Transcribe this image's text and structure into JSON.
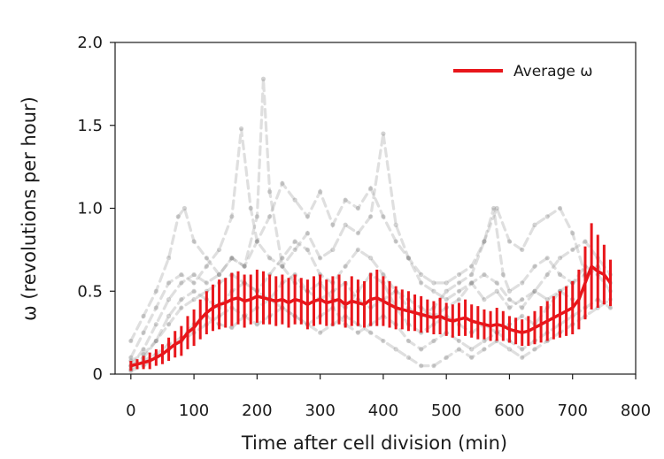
{
  "chart_data": {
    "type": "line",
    "title": "",
    "xlabel": "Time after cell division (min)",
    "ylabel": "ω (revolutions per hour)",
    "xlim": [
      -25,
      800
    ],
    "ylim": [
      0,
      2.0
    ],
    "xticks": [
      0,
      100,
      200,
      300,
      400,
      500,
      600,
      700,
      800
    ],
    "xtick_labels": [
      "0",
      "100",
      "200",
      "300",
      "400",
      "500",
      "600",
      "700",
      "800"
    ],
    "yticks": [
      0,
      0.5,
      1.0,
      1.5,
      2.0
    ],
    "ytick_labels": [
      "0",
      "0.5",
      "1.0",
      "1.5",
      "2.0"
    ],
    "grid": false,
    "legend": {
      "position": "top-right",
      "entries": [
        "Average ω"
      ]
    },
    "colors": {
      "average": "#e8161b",
      "individual": "#9a9a9a"
    },
    "series": [
      {
        "name": "Average ω",
        "style": "red line with vertical error bars",
        "x": [
          0,
          10,
          20,
          30,
          40,
          50,
          60,
          70,
          80,
          90,
          100,
          110,
          120,
          130,
          140,
          150,
          160,
          170,
          180,
          190,
          200,
          210,
          220,
          230,
          240,
          250,
          260,
          270,
          280,
          290,
          300,
          310,
          320,
          330,
          340,
          350,
          360,
          370,
          380,
          390,
          400,
          410,
          420,
          430,
          440,
          450,
          460,
          470,
          480,
          490,
          500,
          510,
          520,
          530,
          540,
          550,
          560,
          570,
          580,
          590,
          600,
          610,
          620,
          630,
          640,
          650,
          660,
          670,
          680,
          690,
          700,
          710,
          720,
          730,
          740,
          750,
          760
        ],
        "values": [
          0.05,
          0.06,
          0.07,
          0.08,
          0.1,
          0.12,
          0.15,
          0.18,
          0.2,
          0.25,
          0.28,
          0.33,
          0.37,
          0.4,
          0.42,
          0.43,
          0.45,
          0.46,
          0.44,
          0.45,
          0.47,
          0.46,
          0.45,
          0.44,
          0.45,
          0.43,
          0.45,
          0.44,
          0.42,
          0.44,
          0.45,
          0.43,
          0.44,
          0.45,
          0.42,
          0.44,
          0.43,
          0.42,
          0.45,
          0.46,
          0.44,
          0.42,
          0.4,
          0.39,
          0.38,
          0.37,
          0.36,
          0.35,
          0.34,
          0.35,
          0.33,
          0.32,
          0.33,
          0.34,
          0.32,
          0.31,
          0.3,
          0.29,
          0.3,
          0.29,
          0.27,
          0.26,
          0.25,
          0.26,
          0.28,
          0.3,
          0.32,
          0.34,
          0.36,
          0.38,
          0.4,
          0.45,
          0.55,
          0.65,
          0.62,
          0.6,
          0.55
        ],
        "errors": [
          0.03,
          0.03,
          0.04,
          0.05,
          0.05,
          0.06,
          0.07,
          0.08,
          0.09,
          0.1,
          0.11,
          0.12,
          0.13,
          0.14,
          0.15,
          0.15,
          0.16,
          0.16,
          0.16,
          0.15,
          0.16,
          0.16,
          0.15,
          0.15,
          0.15,
          0.15,
          0.15,
          0.14,
          0.15,
          0.15,
          0.15,
          0.14,
          0.15,
          0.15,
          0.14,
          0.15,
          0.14,
          0.14,
          0.16,
          0.17,
          0.15,
          0.14,
          0.13,
          0.12,
          0.12,
          0.11,
          0.11,
          0.1,
          0.1,
          0.11,
          0.1,
          0.1,
          0.1,
          0.11,
          0.1,
          0.1,
          0.09,
          0.09,
          0.1,
          0.09,
          0.08,
          0.08,
          0.08,
          0.09,
          0.1,
          0.11,
          0.12,
          0.13,
          0.14,
          0.15,
          0.16,
          0.18,
          0.22,
          0.26,
          0.22,
          0.18,
          0.14
        ]
      },
      {
        "name": "",
        "style": "individual cell, grey dashed",
        "x": [
          0,
          20,
          40,
          60,
          80,
          100,
          120,
          140,
          160,
          180,
          200,
          210,
          220,
          240,
          260,
          280,
          300,
          320,
          340,
          360,
          380,
          400,
          420,
          440,
          460,
          480,
          500,
          520,
          540,
          560,
          580,
          600,
          620,
          640,
          660,
          680,
          700,
          720,
          740,
          760
        ],
        "values": [
          0.05,
          0.15,
          0.3,
          0.45,
          0.55,
          0.6,
          0.55,
          0.6,
          0.7,
          0.65,
          0.95,
          1.78,
          1.1,
          0.65,
          0.55,
          0.5,
          0.55,
          0.45,
          0.4,
          0.5,
          0.6,
          0.55,
          0.4,
          0.3,
          0.25,
          0.3,
          0.35,
          0.3,
          0.25,
          0.3,
          0.25,
          0.3,
          0.35,
          0.3,
          0.4,
          0.5,
          0.55,
          0.6,
          0.65,
          0.55
        ]
      },
      {
        "name": "",
        "style": "individual cell, grey dashed",
        "x": [
          0,
          20,
          40,
          60,
          80,
          100,
          120,
          140,
          160,
          175,
          190,
          200,
          220,
          240,
          260,
          280,
          300,
          320,
          340,
          360,
          380,
          400,
          420,
          440,
          460,
          480,
          500,
          520,
          540,
          560,
          580,
          600,
          620,
          640,
          660,
          680,
          700
        ],
        "values": [
          0.1,
          0.25,
          0.4,
          0.55,
          0.6,
          0.55,
          0.65,
          0.75,
          0.95,
          1.48,
          1.0,
          0.8,
          0.7,
          0.65,
          0.75,
          0.85,
          0.7,
          0.75,
          0.9,
          0.85,
          0.95,
          1.45,
          0.9,
          0.7,
          0.55,
          0.5,
          0.45,
          0.5,
          0.55,
          0.45,
          0.5,
          0.4,
          0.45,
          0.5,
          0.45,
          0.5,
          0.45
        ]
      },
      {
        "name": "",
        "style": "individual cell, grey dashed",
        "x": [
          0,
          20,
          40,
          60,
          75,
          85,
          100,
          120,
          140,
          160,
          180,
          200,
          220,
          240,
          260,
          280,
          300,
          320,
          340,
          360,
          380,
          400,
          420,
          440,
          460,
          480,
          500,
          520,
          540,
          560,
          580,
          600,
          620,
          640,
          660,
          680,
          700,
          720
        ],
        "values": [
          0.2,
          0.35,
          0.5,
          0.7,
          0.95,
          1.0,
          0.8,
          0.7,
          0.6,
          0.7,
          0.65,
          0.8,
          0.95,
          1.15,
          1.05,
          0.95,
          1.1,
          0.9,
          1.05,
          1.0,
          1.12,
          0.95,
          0.8,
          0.7,
          0.6,
          0.55,
          0.55,
          0.6,
          0.65,
          0.8,
          1.0,
          0.8,
          0.75,
          0.9,
          0.95,
          1.0,
          0.85,
          0.6
        ]
      },
      {
        "name": "",
        "style": "individual cell, grey dashed",
        "x": [
          0,
          20,
          40,
          60,
          80,
          100,
          120,
          140,
          160,
          180,
          200,
          220,
          240,
          260,
          280,
          300,
          320,
          340,
          360,
          380,
          400,
          420,
          440,
          460,
          480,
          500,
          520,
          540,
          560,
          580,
          600,
          620,
          640,
          660,
          680,
          700,
          720,
          740,
          760
        ],
        "values": [
          0.02,
          0.05,
          0.1,
          0.15,
          0.2,
          0.25,
          0.3,
          0.35,
          0.4,
          0.35,
          0.3,
          0.35,
          0.4,
          0.35,
          0.3,
          0.25,
          0.3,
          0.35,
          0.3,
          0.25,
          0.2,
          0.15,
          0.1,
          0.05,
          0.05,
          0.1,
          0.15,
          0.1,
          0.15,
          0.2,
          0.15,
          0.1,
          0.15,
          0.2,
          0.25,
          0.3,
          0.35,
          0.4,
          0.45
        ]
      },
      {
        "name": "",
        "style": "individual cell, grey dashed",
        "x": [
          0,
          20,
          40,
          60,
          80,
          100,
          120,
          140,
          160,
          180,
          200,
          220,
          240,
          260,
          280,
          300,
          320,
          340,
          360,
          380,
          400,
          420,
          440,
          460,
          480,
          500,
          520,
          540,
          560,
          580,
          600,
          620,
          640,
          660,
          680,
          700,
          720,
          740,
          760
        ],
        "values": [
          0.08,
          0.12,
          0.2,
          0.3,
          0.4,
          0.45,
          0.5,
          0.55,
          0.6,
          0.55,
          0.5,
          0.6,
          0.7,
          0.8,
          0.75,
          0.6,
          0.55,
          0.65,
          0.75,
          0.7,
          0.6,
          0.5,
          0.45,
          0.4,
          0.35,
          0.4,
          0.45,
          0.55,
          0.6,
          0.55,
          0.45,
          0.4,
          0.5,
          0.6,
          0.7,
          0.75,
          0.8,
          0.7,
          0.6
        ]
      },
      {
        "name": "",
        "style": "individual cell, grey dashed",
        "x": [
          0,
          20,
          40,
          60,
          80,
          100,
          120,
          140,
          160,
          180,
          200,
          220,
          240,
          260,
          280,
          300,
          320,
          340,
          360,
          380,
          400,
          420,
          440,
          460,
          480,
          500,
          520,
          540,
          560,
          580,
          600,
          620,
          640,
          660,
          680,
          700,
          720,
          740,
          760
        ],
        "values": [
          0.03,
          0.08,
          0.12,
          0.18,
          0.22,
          0.3,
          0.35,
          0.3,
          0.28,
          0.35,
          0.4,
          0.45,
          0.4,
          0.35,
          0.3,
          0.35,
          0.4,
          0.3,
          0.25,
          0.3,
          0.35,
          0.3,
          0.2,
          0.15,
          0.2,
          0.25,
          0.2,
          0.15,
          0.2,
          0.25,
          0.2,
          0.15,
          0.2,
          0.25,
          0.3,
          0.35,
          0.4,
          0.45,
          0.4
        ]
      },
      {
        "name": "",
        "style": "individual cell, grey dashed",
        "x": [
          0,
          20,
          40,
          60,
          80,
          100,
          120,
          140,
          160,
          180,
          200,
          220,
          240,
          260,
          280,
          300,
          320,
          340,
          360,
          380,
          400,
          420,
          440,
          460,
          480,
          500,
          520,
          540,
          560,
          575,
          590,
          600,
          620,
          640,
          660,
          680,
          700,
          720,
          740,
          760
        ],
        "values": [
          0.05,
          0.1,
          0.2,
          0.35,
          0.45,
          0.5,
          0.45,
          0.4,
          0.5,
          0.55,
          0.5,
          0.45,
          0.55,
          0.6,
          0.5,
          0.45,
          0.5,
          0.55,
          0.45,
          0.4,
          0.45,
          0.5,
          0.4,
          0.35,
          0.4,
          0.5,
          0.55,
          0.6,
          0.8,
          1.0,
          0.6,
          0.5,
          0.55,
          0.65,
          0.7,
          0.6,
          0.55,
          0.65,
          0.6,
          0.5
        ]
      }
    ]
  }
}
